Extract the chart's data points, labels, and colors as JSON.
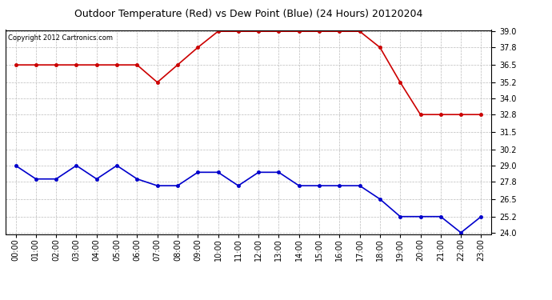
{
  "title": "Outdoor Temperature (Red) vs Dew Point (Blue) (24 Hours) 20120204",
  "copyright_text": "Copyright 2012 Cartronics.com",
  "x_labels": [
    "00:00",
    "01:00",
    "02:00",
    "03:00",
    "04:00",
    "05:00",
    "06:00",
    "07:00",
    "08:00",
    "09:00",
    "10:00",
    "11:00",
    "12:00",
    "13:00",
    "14:00",
    "15:00",
    "16:00",
    "17:00",
    "18:00",
    "19:00",
    "20:00",
    "21:00",
    "22:00",
    "23:00"
  ],
  "temp_red": [
    36.5,
    36.5,
    36.5,
    36.5,
    36.5,
    36.5,
    36.5,
    35.2,
    36.5,
    37.8,
    39.0,
    39.0,
    39.0,
    39.0,
    39.0,
    39.0,
    39.0,
    39.0,
    37.8,
    35.2,
    32.8,
    32.8,
    32.8,
    32.8
  ],
  "dew_blue": [
    29.0,
    28.0,
    28.0,
    29.0,
    28.0,
    29.0,
    28.0,
    27.5,
    27.5,
    28.5,
    28.5,
    27.5,
    28.5,
    28.5,
    27.5,
    27.5,
    27.5,
    27.5,
    26.5,
    25.2,
    25.2,
    25.2,
    24.0,
    25.2
  ],
  "ylim_min": 24.0,
  "ylim_max": 39.0,
  "yticks": [
    24.0,
    25.2,
    26.5,
    27.8,
    29.0,
    30.2,
    31.5,
    32.8,
    34.0,
    35.2,
    36.5,
    37.8,
    39.0
  ],
  "bg_color": "#ffffff",
  "grid_color": "#bbbbbb",
  "red_color": "#cc0000",
  "blue_color": "#0000cc",
  "markersize": 3,
  "linewidth": 1.2,
  "title_fontsize": 9,
  "tick_fontsize": 7,
  "copyright_fontsize": 6
}
